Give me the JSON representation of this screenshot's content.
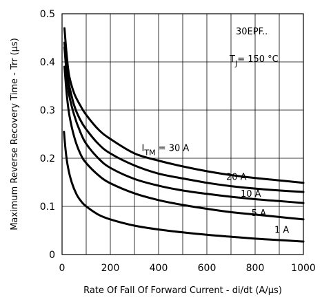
{
  "chart_data": {
    "type": "line",
    "title": "",
    "xlabel": "Rate Of Fall Of Forward Current - di/dt (A/µs)",
    "ylabel": "Maximum Reverse Recovery Time - Trr (µs)",
    "xlim": [
      0,
      1000
    ],
    "ylim": [
      0,
      0.5
    ],
    "x_ticks": [
      0,
      200,
      400,
      600,
      800,
      1000
    ],
    "y_ticks": [
      0,
      0.1,
      0.2,
      0.3,
      0.4,
      0.5
    ],
    "x_tick_labels": [
      "0",
      "200",
      "400",
      "600",
      "800",
      "1000"
    ],
    "y_tick_labels": [
      "0",
      "0.1",
      "0.2",
      "0.3",
      "0.4",
      "0.5"
    ],
    "grid": true,
    "annotation_lines": [
      "30EPF..",
      "T",
      "J",
      "= 150 °C"
    ],
    "series": [
      {
        "name": "30 A",
        "label_parts": [
          "I",
          "TM",
          "= 30 A"
        ],
        "x": [
          10,
          20,
          30,
          50,
          75,
          100,
          150,
          200,
          300,
          400,
          500,
          600,
          700,
          800,
          900,
          1000
        ],
        "y": [
          0.47,
          0.41,
          0.37,
          0.335,
          0.31,
          0.29,
          0.26,
          0.24,
          0.21,
          0.195,
          0.183,
          0.173,
          0.165,
          0.159,
          0.154,
          0.149
        ]
      },
      {
        "name": "20 A",
        "label_parts": [
          "20 A"
        ],
        "x": [
          10,
          20,
          30,
          50,
          75,
          100,
          150,
          200,
          300,
          400,
          500,
          600,
          700,
          800,
          900,
          1000
        ],
        "y": [
          0.44,
          0.38,
          0.35,
          0.31,
          0.28,
          0.26,
          0.23,
          0.21,
          0.185,
          0.168,
          0.158,
          0.149,
          0.142,
          0.137,
          0.133,
          0.13
        ]
      },
      {
        "name": "10 A",
        "label_parts": [
          "10 A"
        ],
        "x": [
          10,
          20,
          30,
          50,
          75,
          100,
          150,
          200,
          300,
          400,
          500,
          600,
          700,
          800,
          900,
          1000
        ],
        "y": [
          0.43,
          0.37,
          0.33,
          0.29,
          0.255,
          0.23,
          0.2,
          0.18,
          0.157,
          0.143,
          0.133,
          0.126,
          0.12,
          0.115,
          0.111,
          0.107
        ]
      },
      {
        "name": "5 A",
        "label_parts": [
          "5 A"
        ],
        "x": [
          10,
          20,
          30,
          50,
          75,
          100,
          150,
          200,
          300,
          400,
          500,
          600,
          700,
          800,
          900,
          1000
        ],
        "y": [
          0.39,
          0.33,
          0.29,
          0.245,
          0.21,
          0.19,
          0.165,
          0.148,
          0.127,
          0.113,
          0.103,
          0.095,
          0.088,
          0.083,
          0.078,
          0.073
        ]
      },
      {
        "name": "1 A",
        "label_parts": [
          "1 A"
        ],
        "x": [
          8,
          15,
          25,
          40,
          60,
          80,
          100,
          150,
          200,
          300,
          400,
          500,
          600,
          700,
          800,
          900,
          1000
        ],
        "y": [
          0.255,
          0.215,
          0.18,
          0.15,
          0.125,
          0.11,
          0.1,
          0.083,
          0.073,
          0.06,
          0.052,
          0.046,
          0.041,
          0.037,
          0.033,
          0.03,
          0.027
        ]
      }
    ]
  }
}
